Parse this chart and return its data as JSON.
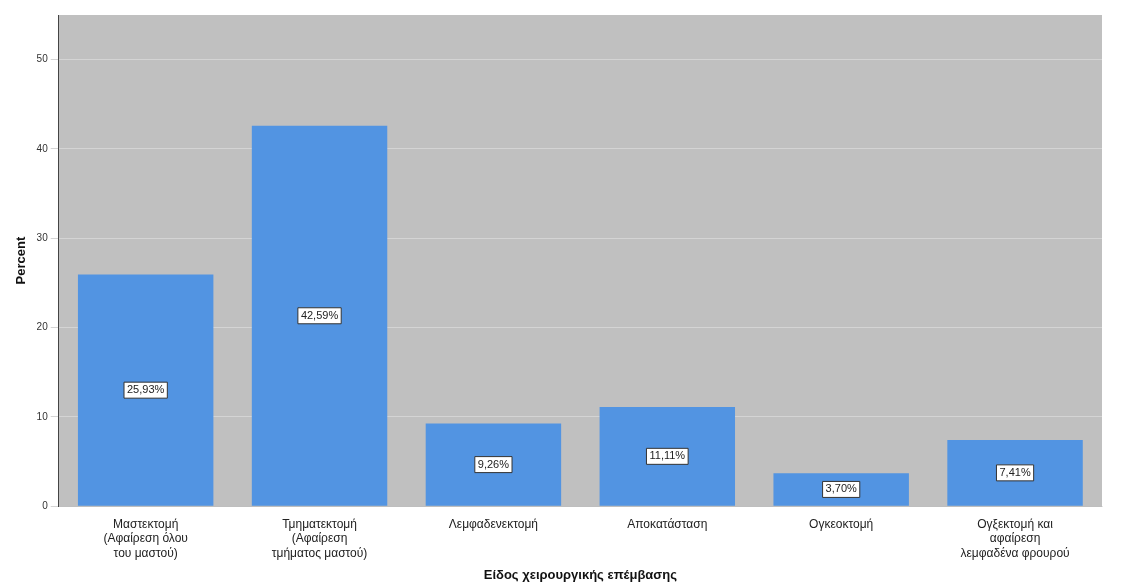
{
  "chart_data": {
    "type": "bar",
    "xlabel": "Είδος χειρουργικής επέμβασης",
    "ylabel": "Percent",
    "categories": [
      "Μαστεκτομή (Αφαίρεση όλου του μαστού)",
      "Τμηματεκτομή (Αφαίρεση τμήματος μαστού)",
      "Λεμφαδενεκτομή",
      "Αποκατάσταση",
      "Ογκεοκτομή",
      "Ογξεκτομή και αφαίρεση λεμφαδένα φρουρού"
    ],
    "values": [
      25.93,
      42.59,
      9.26,
      11.11,
      3.7,
      7.41
    ],
    "value_labels": [
      "25,93%",
      "42,59%",
      "9,26%",
      "11,11%",
      "3,70%",
      "7,41%"
    ],
    "color": "#5294e2",
    "ylim": [
      0,
      55
    ],
    "yticks": [
      0,
      10,
      20,
      30,
      40,
      50
    ],
    "grid": "y"
  }
}
